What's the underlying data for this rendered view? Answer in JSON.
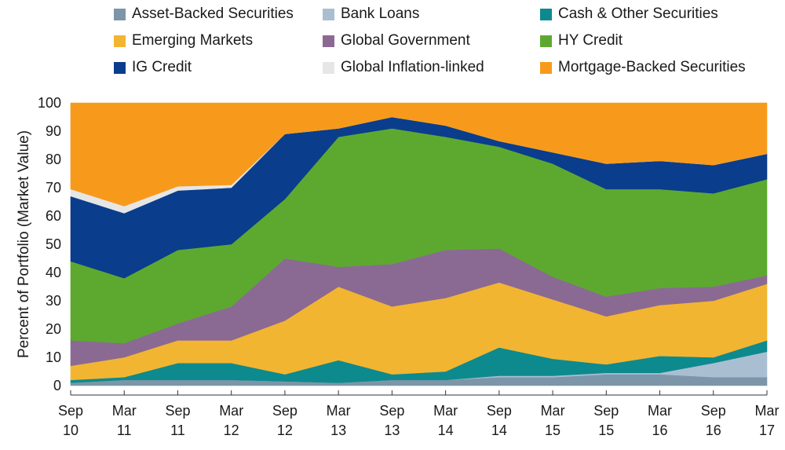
{
  "chart_data": {
    "type": "area",
    "stacked": true,
    "ylabel": "Percent of Portfolio (Market Value)",
    "xlabel": "",
    "ylim": [
      0,
      100
    ],
    "yticks": [
      0,
      10,
      20,
      30,
      40,
      50,
      60,
      70,
      80,
      90,
      100
    ],
    "xticks": [
      {
        "top": "Sep",
        "bottom": "10"
      },
      {
        "top": "Mar",
        "bottom": "11"
      },
      {
        "top": "Sep",
        "bottom": "11"
      },
      {
        "top": "Mar",
        "bottom": "12"
      },
      {
        "top": "Sep",
        "bottom": "12"
      },
      {
        "top": "Mar",
        "bottom": "13"
      },
      {
        "top": "Sep",
        "bottom": "13"
      },
      {
        "top": "Mar",
        "bottom": "14"
      },
      {
        "top": "Sep",
        "bottom": "14"
      },
      {
        "top": "Mar",
        "bottom": "15"
      },
      {
        "top": "Sep",
        "bottom": "15"
      },
      {
        "top": "Mar",
        "bottom": "16"
      },
      {
        "top": "Sep",
        "bottom": "16"
      },
      {
        "top": "Mar",
        "bottom": "17"
      }
    ],
    "x": [
      "Sep 10",
      "Mar 11",
      "Sep 11",
      "Mar 12",
      "Sep 12",
      "Mar 13",
      "Sep 13",
      "Mar 14",
      "Sep 14",
      "Mar 15",
      "Sep 15",
      "Mar 16",
      "Sep 16",
      "Mar 17"
    ],
    "series": [
      {
        "name": "Asset-Backed Securities",
        "color": "#7d95a8",
        "values": [
          1,
          2,
          2,
          2,
          1.5,
          1,
          2,
          2,
          3,
          3,
          4,
          4,
          3,
          3
        ]
      },
      {
        "name": "Bank Loans",
        "color": "#a9bfd1",
        "values": [
          0,
          0,
          0,
          0,
          0,
          0,
          0,
          0,
          0.5,
          0.5,
          0.5,
          0.5,
          5,
          9
        ]
      },
      {
        "name": "Cash & Other Securities",
        "color": "#0d8a8e",
        "values": [
          1,
          1,
          6,
          6,
          2.5,
          8,
          2,
          3,
          10,
          6,
          3,
          6,
          2,
          4
        ]
      },
      {
        "name": "Emerging Markets",
        "color": "#f2b531",
        "values": [
          5,
          7,
          8,
          8,
          19,
          26,
          24,
          26,
          23,
          21,
          17,
          18,
          20,
          20
        ]
      },
      {
        "name": "Global Government",
        "color": "#8a6a93",
        "values": [
          9,
          5,
          6,
          12,
          22,
          7,
          15,
          17,
          12,
          8,
          7,
          6,
          5,
          3
        ]
      },
      {
        "name": "HY Credit",
        "color": "#5da930",
        "values": [
          28,
          23,
          26,
          22,
          21,
          46,
          48,
          40,
          36,
          40,
          38,
          35,
          33,
          34
        ]
      },
      {
        "name": "IG Credit",
        "color": "#0a3d8c",
        "values": [
          23,
          23,
          21,
          20,
          23,
          3,
          4,
          4,
          2,
          4,
          9,
          10,
          10,
          9
        ]
      },
      {
        "name": "Global Inflation-linked",
        "color": "#e6e6e6",
        "values": [
          2.5,
          2.5,
          1.5,
          1,
          0,
          0,
          0,
          0,
          0,
          0,
          0,
          0,
          0,
          0
        ]
      },
      {
        "name": "Mortgage-Backed Securities",
        "color": "#f79a1c",
        "values": [
          30.5,
          36.5,
          29.5,
          29,
          11,
          9,
          5,
          8,
          13.5,
          17.5,
          21.5,
          20.5,
          22,
          18
        ]
      }
    ],
    "legend_placement": "top"
  }
}
